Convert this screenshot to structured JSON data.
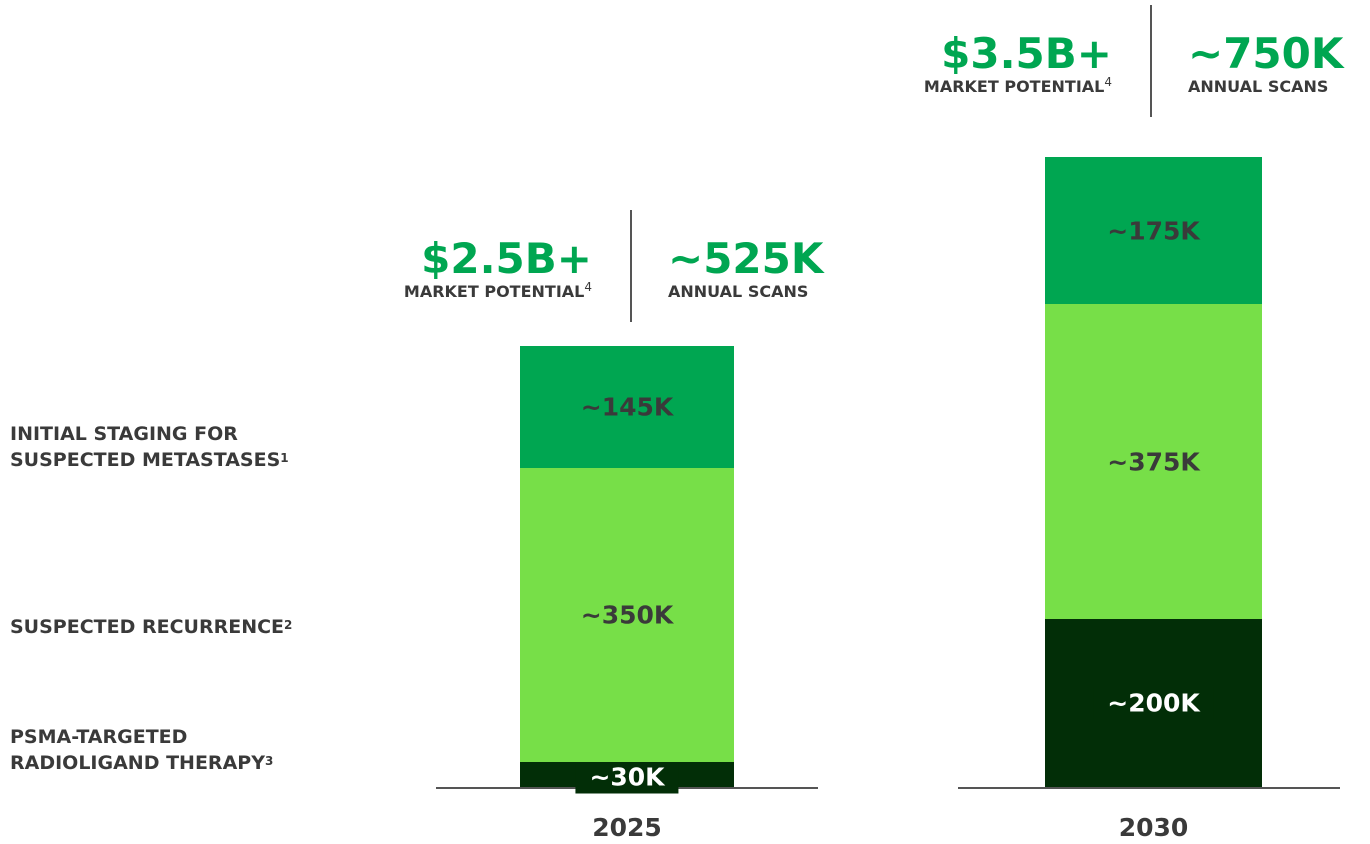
{
  "chart_data": {
    "type": "bar",
    "stacked": true,
    "categories": [
      "2025",
      "2030"
    ],
    "series": [
      {
        "name": "PSMA-TARGETED RADIOLIGAND THERAPY",
        "note": "3",
        "color": "#022e07",
        "values": [
          30,
          200
        ],
        "value_labels": [
          "~30K",
          "~200K"
        ]
      },
      {
        "name": "SUSPECTED RECURRENCE",
        "note": "2",
        "color": "#77df48",
        "values": [
          350,
          375
        ],
        "value_labels": [
          "~350K",
          "~375K"
        ]
      },
      {
        "name": "INITIAL STAGING FOR SUSPECTED METASTASES",
        "note": "1",
        "color": "#00a651",
        "values": [
          145,
          175
        ],
        "value_labels": [
          "~145K",
          "~175K"
        ]
      }
    ],
    "annotations": [
      {
        "potential": "$2.5B+",
        "potential_label": "MARKET POTENTIAL",
        "potential_note": "4",
        "scans": "~525K",
        "scans_label": "ANNUAL SCANS"
      },
      {
        "potential": "$3.5B+",
        "potential_label": "MARKET POTENTIAL",
        "potential_note": "4",
        "scans": "~750K",
        "scans_label": "ANNUAL SCANS"
      }
    ]
  }
}
